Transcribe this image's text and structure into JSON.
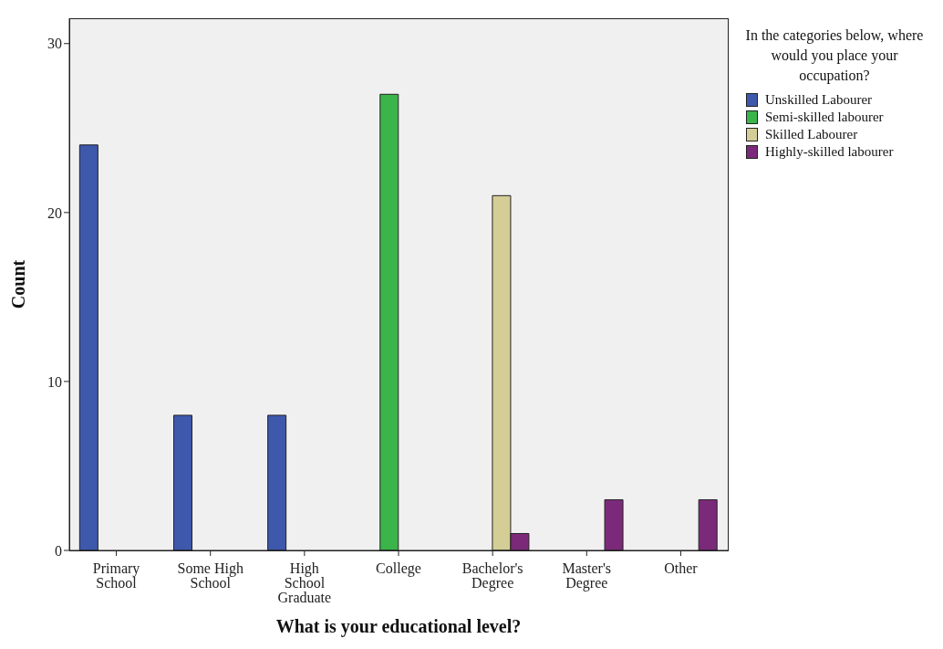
{
  "chart_data": {
    "type": "bar",
    "xlabel": "What is your educational level?",
    "ylabel": "Count",
    "legend_title": "In the categories below, where would you place your occupation?",
    "categories": [
      "Primary School",
      "Some High School",
      "High School Graduate",
      "College",
      "Bachelor's Degree",
      "Master's Degree",
      "Other"
    ],
    "series": [
      {
        "name": "Unskilled Labourer",
        "color": "#3e58ac",
        "values": [
          24,
          8,
          8,
          null,
          null,
          null,
          null
        ]
      },
      {
        "name": "Semi-skilled labourer",
        "color": "#3bb44a",
        "values": [
          null,
          null,
          null,
          27,
          null,
          null,
          null
        ]
      },
      {
        "name": "Skilled Labourer",
        "color": "#d4ce96",
        "values": [
          null,
          null,
          null,
          null,
          21,
          null,
          null
        ]
      },
      {
        "name": "Highly-skilled labourer",
        "color": "#7b2a7a",
        "values": [
          null,
          null,
          null,
          null,
          1,
          3,
          3
        ]
      }
    ],
    "ylim": [
      0,
      31.5
    ],
    "yticks": [
      0,
      10,
      20,
      30
    ],
    "legend": "top right"
  }
}
